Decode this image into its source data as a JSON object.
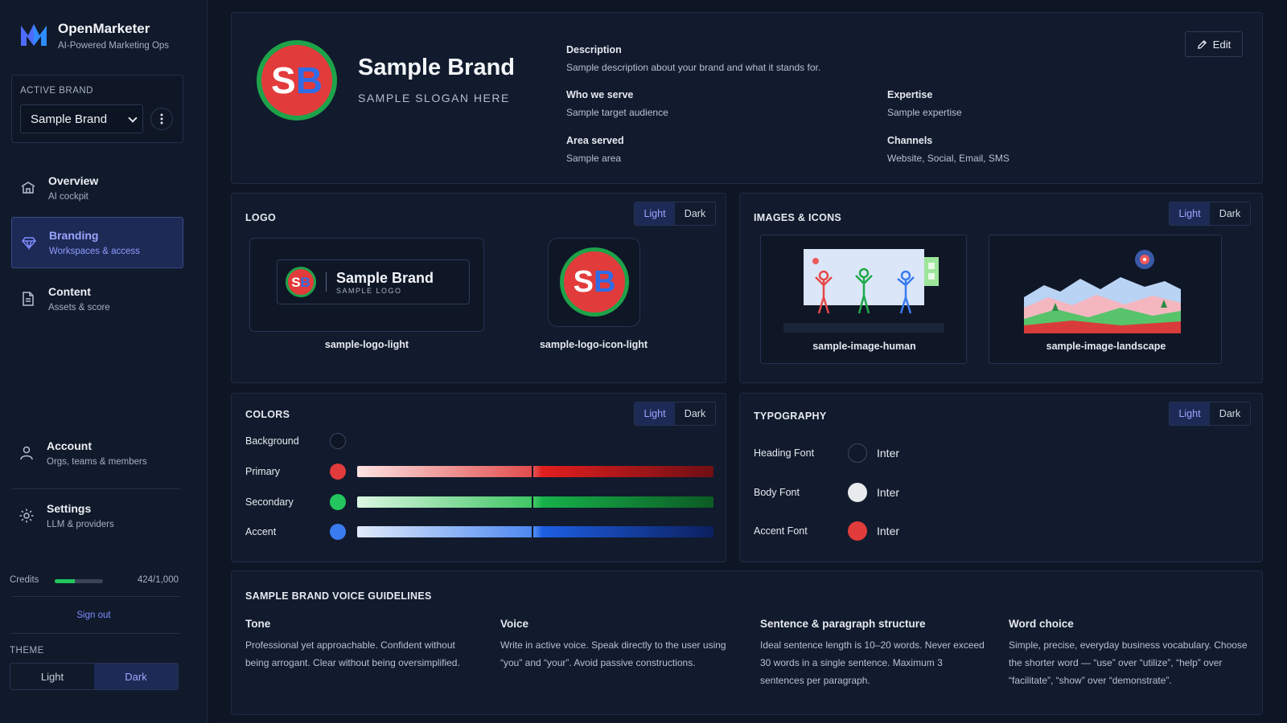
{
  "app": {
    "name": "OpenMarketer",
    "tagline": "AI-Powered Marketing Ops"
  },
  "active_brand": {
    "label": "ACTIVE BRAND",
    "selected": "Sample Brand"
  },
  "nav": [
    {
      "title": "Overview",
      "subtitle": "AI cockpit",
      "icon": "home-icon"
    },
    {
      "title": "Branding",
      "subtitle": "Workspaces & access",
      "icon": "diamond-icon"
    },
    {
      "title": "Content",
      "subtitle": "Assets & score",
      "icon": "document-icon"
    },
    {
      "title": "Account",
      "subtitle": "Orgs, teams & members",
      "icon": "user-icon"
    },
    {
      "title": "Settings",
      "subtitle": "LLM & providers",
      "icon": "gear-icon"
    }
  ],
  "credits": {
    "label": "Credits",
    "value": "424/1,000",
    "used_fraction": 0.424
  },
  "sign_out": "Sign out",
  "theme": {
    "label": "THEME",
    "light": "Light",
    "dark": "Dark",
    "selected": "Dark"
  },
  "brand": {
    "initials_s": "S",
    "initials_b": "B",
    "name": "Sample Brand",
    "slogan": "SAMPLE SLOGAN HERE",
    "edit_label": "Edit",
    "fields": {
      "description_label": "Description",
      "description": "Sample description about your brand and what it stands for.",
      "who_label": "Who we serve",
      "who": "Sample target audience",
      "expertise_label": "Expertise",
      "expertise": "Sample expertise",
      "area_label": "Area served",
      "area": "Sample area",
      "channels_label": "Channels",
      "channels": "Website, Social, Email, SMS"
    }
  },
  "toggle": {
    "light": "Light",
    "dark": "Dark"
  },
  "logo": {
    "title": "LOGO",
    "wordmark_name": "Sample Brand",
    "wordmark_sub": "SAMPLE LOGO",
    "light_caption": "sample-logo-light",
    "icon_caption": "sample-logo-icon-light"
  },
  "images": {
    "title": "IMAGES & ICONS",
    "human_caption": "sample-image-human",
    "landscape_caption": "sample-image-landscape"
  },
  "colors": {
    "title": "COLORS",
    "rows": [
      {
        "label": "Background",
        "color": "#0e1626"
      },
      {
        "label": "Primary",
        "color": "#e23b3b"
      },
      {
        "label": "Secondary",
        "color": "#22c55e"
      },
      {
        "label": "Accent",
        "color": "#3b7bf0"
      }
    ]
  },
  "typography": {
    "title": "TYPOGRAPHY",
    "rows": [
      {
        "label": "Heading Font",
        "font": "Inter",
        "color": "#111a2b"
      },
      {
        "label": "Body Font",
        "font": "Inter",
        "color": "#e8eaee"
      },
      {
        "label": "Accent Font",
        "font": "Inter",
        "color": "#e23b3b"
      }
    ]
  },
  "voice": {
    "title": "SAMPLE BRAND VOICE GUIDELINES",
    "columns": [
      {
        "heading": "Tone",
        "body": "Professional yet approachable. Confident without being arrogant. Clear without being oversimplified."
      },
      {
        "heading": "Voice",
        "body": "Write in active voice. Speak directly to the user using “you” and “your”. Avoid passive constructions."
      },
      {
        "heading": "Sentence & paragraph structure",
        "body": "Ideal sentence length is 10–20 words. Never exceed 30 words in a single sentence. Maximum 3 sentences per paragraph."
      },
      {
        "heading": "Word choice",
        "body": "Simple, precise, everyday business vocabulary. Choose the shorter word — “use” over “utilize”, “help” over “facilitate”, “show” over “demonstrate”."
      }
    ]
  }
}
